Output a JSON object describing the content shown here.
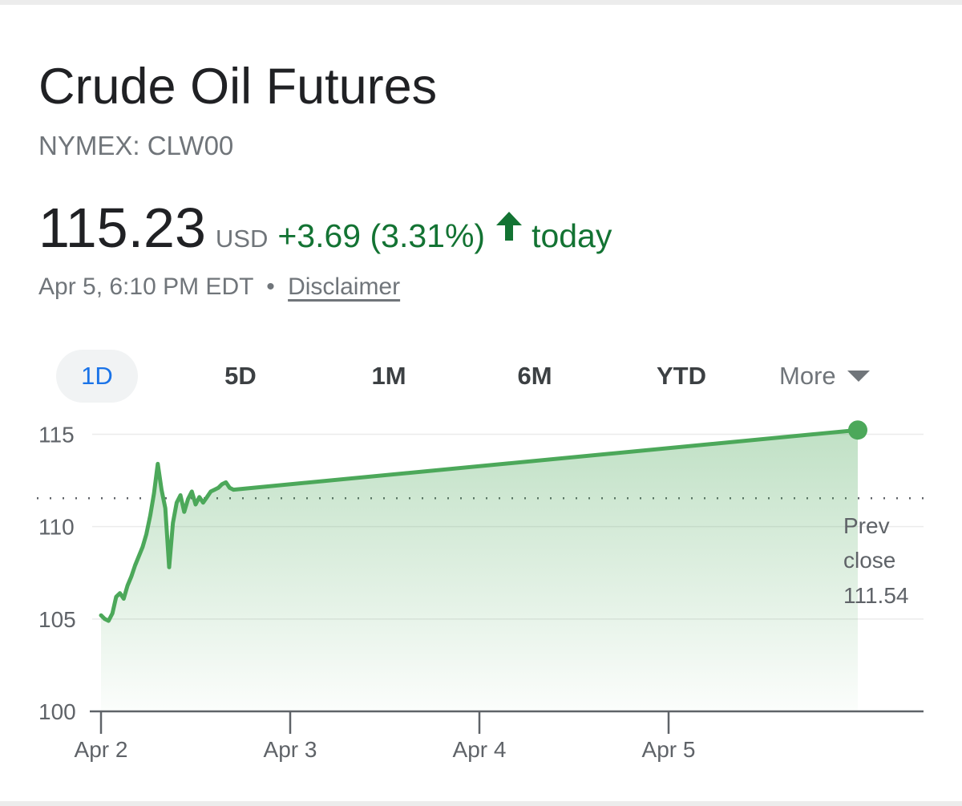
{
  "header": {
    "title": "Crude Oil Futures",
    "ticker": "NYMEX: CLW00"
  },
  "quote": {
    "price": "115.23",
    "currency": "USD",
    "change": "+3.69 (3.31%)",
    "trend_icon": "arrow-up-icon",
    "period_label": "today",
    "timestamp": "Apr 5, 6:10 PM EDT",
    "separator": "•",
    "disclaimer_link": "Disclaimer",
    "positive_color": "#137333"
  },
  "tabs": [
    {
      "label": "1D",
      "active": true
    },
    {
      "label": "5D",
      "active": false
    },
    {
      "label": "1M",
      "active": false
    },
    {
      "label": "6M",
      "active": false
    },
    {
      "label": "YTD",
      "active": false
    },
    {
      "label": "More",
      "active": false,
      "icon": "caret-down-icon"
    }
  ],
  "chart_data": {
    "type": "area",
    "title": "",
    "xlabel": "",
    "ylabel": "",
    "line_color": "#4ca85a",
    "fill_color": "#4ca85a",
    "grid": true,
    "ylim": [
      100,
      115.5
    ],
    "yticks": [
      100,
      105,
      110,
      115
    ],
    "ytick_labels": [
      "100",
      "105",
      "110",
      "115"
    ],
    "xticks": [
      0,
      1,
      2,
      3
    ],
    "xtick_labels": [
      "Apr 2",
      "Apr 3",
      "Apr 4",
      "Apr 5"
    ],
    "xlim": [
      0,
      4.4
    ],
    "previous_close": {
      "value": 111.54,
      "label_line1": "Prev",
      "label_line2": "close",
      "label_value": "111.54"
    },
    "series": [
      {
        "x": [
          0.0,
          0.02,
          0.04,
          0.06,
          0.08,
          0.1,
          0.12,
          0.14,
          0.16,
          0.18,
          0.2,
          0.22,
          0.24,
          0.26,
          0.28,
          0.3,
          0.32,
          0.34,
          0.36,
          0.38,
          0.4,
          0.42,
          0.44,
          0.46,
          0.48,
          0.5,
          0.52,
          0.54,
          0.56,
          0.58,
          0.6,
          0.62,
          0.64,
          0.66,
          0.68,
          0.7,
          4.0
        ],
        "y": [
          105.2,
          105.0,
          104.9,
          105.3,
          106.2,
          106.4,
          106.1,
          106.8,
          107.3,
          107.9,
          108.4,
          108.9,
          109.6,
          110.6,
          111.8,
          113.4,
          112.0,
          111.0,
          107.8,
          110.2,
          111.3,
          111.7,
          110.8,
          111.5,
          111.9,
          111.2,
          111.6,
          111.3,
          111.6,
          111.9,
          112.0,
          112.1,
          112.3,
          112.4,
          112.1,
          112.0,
          115.23
        ]
      }
    ],
    "last_point": {
      "x": 4.0,
      "y": 115.23
    }
  }
}
